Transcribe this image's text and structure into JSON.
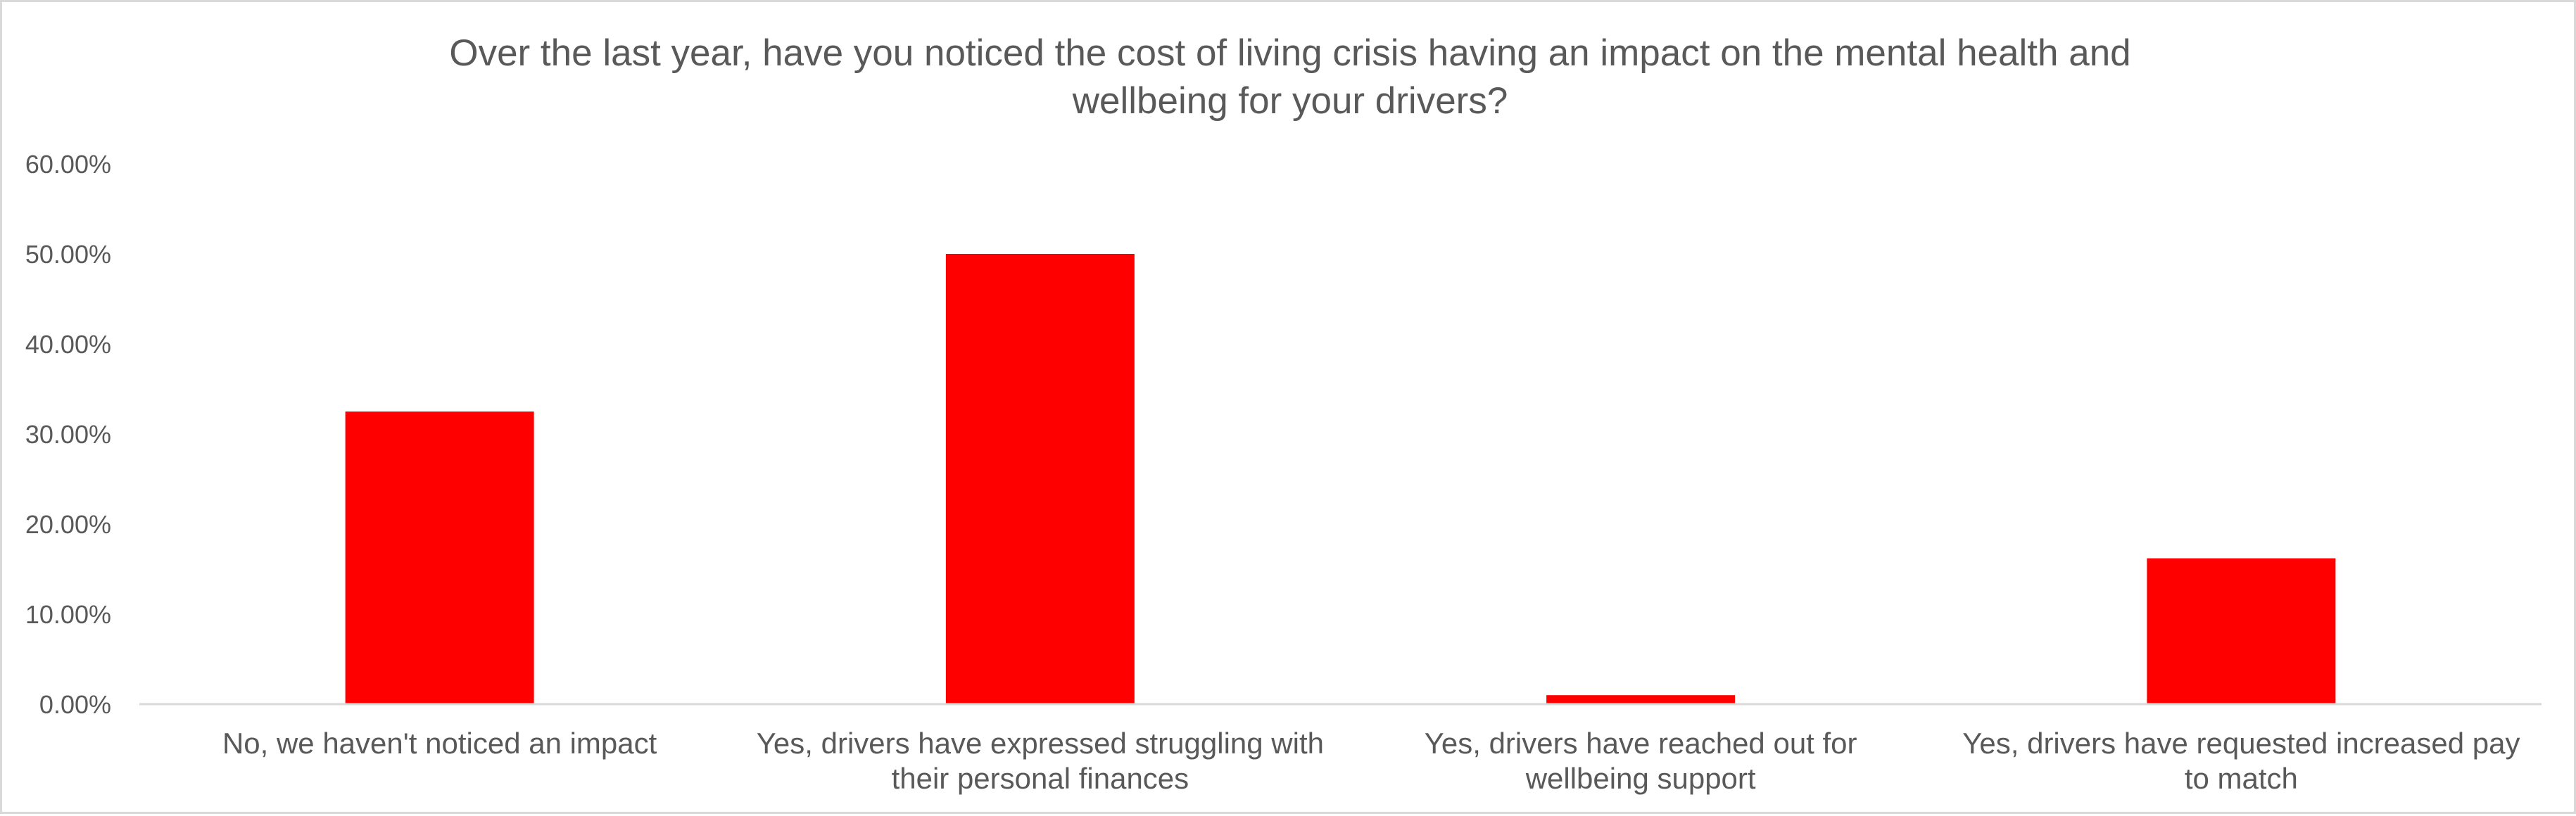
{
  "chart_data": {
    "type": "bar",
    "title_lines": [
      "Over the last year, have you noticed the cost of living crisis having an impact on the mental health and",
      "wellbeing for your drivers?"
    ],
    "categories": [
      [
        "No, we haven't noticed an impact"
      ],
      [
        "Yes, drivers have expressed struggling with",
        "their personal finances"
      ],
      [
        "Yes, drivers have reached out for",
        "wellbeing support"
      ],
      [
        "Yes, drivers have requested increased pay",
        "to match"
      ]
    ],
    "values": [
      0.325,
      0.5,
      0.01,
      0.162
    ],
    "ylim": [
      0,
      0.6
    ],
    "yticks": [
      0,
      0.1,
      0.2,
      0.3,
      0.4,
      0.5,
      0.6
    ],
    "ytick_labels": [
      "0.00%",
      "10.00%",
      "20.00%",
      "30.00%",
      "40.00%",
      "50.00%",
      "60.00%"
    ],
    "grid": false,
    "legend": "none",
    "bar_color": "#ff0000",
    "axis_color": "#d9d9d9",
    "text_color": "#595959"
  }
}
